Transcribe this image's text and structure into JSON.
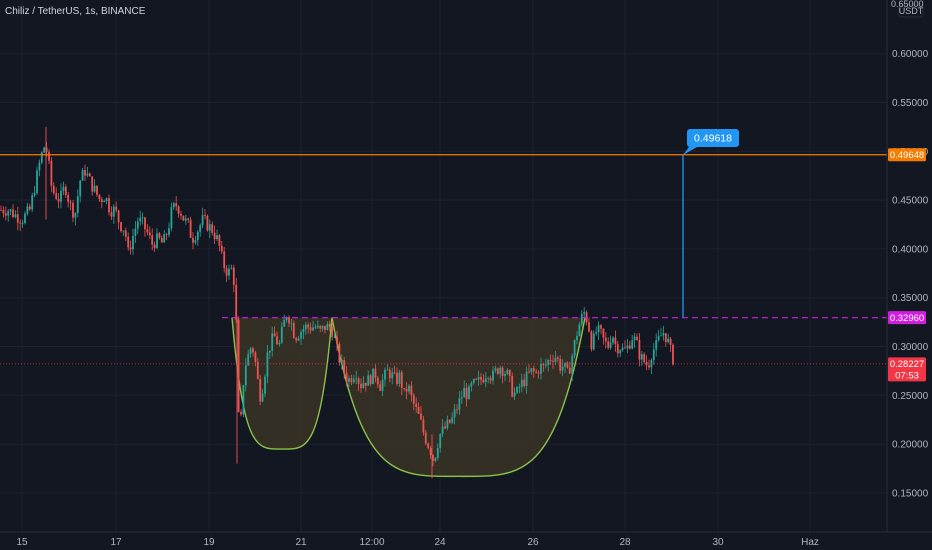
{
  "header": {
    "title": "Chiliz / TetherUS, 1s, BINANCE"
  },
  "price_axis": {
    "unit": "USDT",
    "top_partial_label": "0.65000",
    "labels": [
      "0.60000",
      "0.55000",
      "0.50000",
      "0.45000",
      "0.40000",
      "0.35000",
      "0.30000",
      "0.25000",
      "0.20000",
      "0.15000"
    ]
  },
  "time_axis": {
    "labels": [
      "15",
      "17",
      "19",
      "21",
      "12:00",
      "24",
      "26",
      "28",
      "30",
      "Haz"
    ]
  },
  "colors": {
    "background": "#131722",
    "grid": "#1e222d",
    "up": "#26a69a",
    "down": "#ef5350",
    "resistance": "#f57c00",
    "neckline": "#d11fe0",
    "current": "#f23645",
    "cup_line": "#8bc34a",
    "cup_fill": "#3a3424",
    "target_arrow": "#2196f3"
  },
  "price_tags": {
    "resistance": "0.49648",
    "neckline": "0.32960",
    "current": "0.28227",
    "countdown": "07:53"
  },
  "annotation": {
    "target_label": "0.49618"
  },
  "chart_data": {
    "type": "candlestick",
    "title": "Chiliz / TetherUS, 1s, BINANCE",
    "ylim": [
      0.11,
      0.655
    ],
    "y_ticks": [
      0.15,
      0.2,
      0.25,
      0.3,
      0.35,
      0.4,
      0.45,
      0.5,
      0.55,
      0.6
    ],
    "x_labels": [
      "15",
      "17",
      "19",
      "21",
      "12:00",
      "24",
      "26",
      "28",
      "30",
      "Haz"
    ],
    "price_path": [
      [
        0,
        0.44
      ],
      [
        8,
        0.44
      ],
      [
        15,
        0.435
      ],
      [
        22,
        0.43
      ],
      [
        30,
        0.44
      ],
      [
        36,
        0.47
      ],
      [
        40,
        0.49
      ],
      [
        44,
        0.505
      ],
      [
        47,
        0.5
      ],
      [
        52,
        0.46
      ],
      [
        60,
        0.45
      ],
      [
        65,
        0.465
      ],
      [
        70,
        0.445
      ],
      [
        75,
        0.435
      ],
      [
        80,
        0.47
      ],
      [
        85,
        0.48
      ],
      [
        92,
        0.465
      ],
      [
        100,
        0.45
      ],
      [
        105,
        0.455
      ],
      [
        110,
        0.44
      ],
      [
        115,
        0.44
      ],
      [
        120,
        0.425
      ],
      [
        125,
        0.42
      ],
      [
        128,
        0.395
      ],
      [
        132,
        0.41
      ],
      [
        138,
        0.43
      ],
      [
        143,
        0.425
      ],
      [
        148,
        0.415
      ],
      [
        152,
        0.405
      ],
      [
        158,
        0.41
      ],
      [
        163,
        0.405
      ],
      [
        168,
        0.42
      ],
      [
        172,
        0.44
      ],
      [
        176,
        0.445
      ],
      [
        180,
        0.44
      ],
      [
        184,
        0.43
      ],
      [
        188,
        0.425
      ],
      [
        192,
        0.41
      ],
      [
        198,
        0.42
      ],
      [
        203,
        0.43
      ],
      [
        207,
        0.425
      ],
      [
        212,
        0.42
      ],
      [
        217,
        0.41
      ],
      [
        220,
        0.4
      ],
      [
        223,
        0.385
      ],
      [
        228,
        0.375
      ],
      [
        232,
        0.38
      ],
      [
        235,
        0.36
      ],
      [
        237,
        0.3
      ],
      [
        238,
        0.24
      ],
      [
        240,
        0.2
      ],
      [
        242,
        0.25
      ],
      [
        245,
        0.28
      ],
      [
        248,
        0.29
      ],
      [
        251,
        0.3
      ],
      [
        254,
        0.295
      ],
      [
        257,
        0.27
      ],
      [
        260,
        0.25
      ],
      [
        263,
        0.26
      ],
      [
        267,
        0.29
      ],
      [
        271,
        0.305
      ],
      [
        275,
        0.31
      ],
      [
        279,
        0.3
      ],
      [
        283,
        0.32
      ],
      [
        287,
        0.335
      ],
      [
        291,
        0.325
      ],
      [
        295,
        0.31
      ],
      [
        300,
        0.315
      ],
      [
        305,
        0.32
      ],
      [
        310,
        0.32
      ],
      [
        315,
        0.32
      ],
      [
        320,
        0.315
      ],
      [
        325,
        0.32
      ],
      [
        330,
        0.32
      ],
      [
        333,
        0.315
      ],
      [
        336,
        0.3
      ],
      [
        340,
        0.285
      ],
      [
        344,
        0.275
      ],
      [
        348,
        0.265
      ],
      [
        352,
        0.27
      ],
      [
        356,
        0.275
      ],
      [
        360,
        0.26
      ],
      [
        364,
        0.265
      ],
      [
        368,
        0.265
      ],
      [
        372,
        0.27
      ],
      [
        376,
        0.272
      ],
      [
        380,
        0.26
      ],
      [
        384,
        0.268
      ],
      [
        388,
        0.275
      ],
      [
        392,
        0.27
      ],
      [
        396,
        0.265
      ],
      [
        400,
        0.27
      ],
      [
        404,
        0.25
      ],
      [
        408,
        0.26
      ],
      [
        412,
        0.245
      ],
      [
        416,
        0.235
      ],
      [
        420,
        0.225
      ],
      [
        424,
        0.21
      ],
      [
        428,
        0.2
      ],
      [
        432,
        0.19
      ],
      [
        434,
        0.18
      ],
      [
        436,
        0.195
      ],
      [
        440,
        0.21
      ],
      [
        444,
        0.215
      ],
      [
        448,
        0.22
      ],
      [
        452,
        0.225
      ],
      [
        456,
        0.235
      ],
      [
        460,
        0.245
      ],
      [
        464,
        0.255
      ],
      [
        468,
        0.25
      ],
      [
        472,
        0.26
      ],
      [
        476,
        0.262
      ],
      [
        480,
        0.265
      ],
      [
        484,
        0.27
      ],
      [
        488,
        0.275
      ],
      [
        492,
        0.268
      ],
      [
        496,
        0.275
      ],
      [
        500,
        0.28
      ],
      [
        504,
        0.275
      ],
      [
        508,
        0.27
      ],
      [
        512,
        0.255
      ],
      [
        516,
        0.25
      ],
      [
        520,
        0.26
      ],
      [
        524,
        0.265
      ],
      [
        528,
        0.27
      ],
      [
        532,
        0.275
      ],
      [
        536,
        0.272
      ],
      [
        540,
        0.28
      ],
      [
        544,
        0.278
      ],
      [
        548,
        0.285
      ],
      [
        552,
        0.29
      ],
      [
        556,
        0.29
      ],
      [
        560,
        0.28
      ],
      [
        564,
        0.28
      ],
      [
        568,
        0.27
      ],
      [
        572,
        0.29
      ],
      [
        576,
        0.31
      ],
      [
        580,
        0.325
      ],
      [
        584,
        0.335
      ],
      [
        588,
        0.325
      ],
      [
        592,
        0.3
      ],
      [
        596,
        0.315
      ],
      [
        600,
        0.315
      ],
      [
        604,
        0.305
      ],
      [
        608,
        0.3
      ],
      [
        612,
        0.315
      ],
      [
        616,
        0.3
      ],
      [
        620,
        0.3
      ],
      [
        624,
        0.295
      ],
      [
        628,
        0.3
      ],
      [
        632,
        0.31
      ],
      [
        636,
        0.305
      ],
      [
        640,
        0.29
      ],
      [
        644,
        0.285
      ],
      [
        648,
        0.28
      ],
      [
        652,
        0.295
      ],
      [
        656,
        0.3
      ],
      [
        660,
        0.31
      ],
      [
        664,
        0.315
      ],
      [
        668,
        0.305
      ],
      [
        672,
        0.29
      ],
      [
        675,
        0.283
      ]
    ],
    "horizontal_levels": [
      {
        "price": 0.49648,
        "style": "solid"
      },
      {
        "price": 0.3296,
        "style": "dashed"
      },
      {
        "price": 0.28227,
        "style": "dotted"
      }
    ],
    "cups": [
      {
        "x_start": 232,
        "x_end": 332,
        "bottom_price": 0.195,
        "top_price": 0.3296
      },
      {
        "x_start": 332,
        "x_end": 585,
        "bottom_price": 0.167,
        "top_price": 0.3296
      }
    ],
    "target_arrow": {
      "x": 683,
      "from_price": 0.3296,
      "to_price": 0.49618
    }
  }
}
